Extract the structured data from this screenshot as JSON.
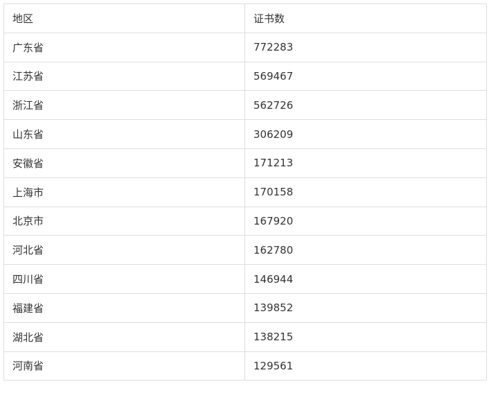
{
  "table": {
    "headers": [
      "地区",
      "证书数"
    ],
    "rows": [
      [
        "广东省",
        "772283"
      ],
      [
        "江苏省",
        "569467"
      ],
      [
        "浙江省",
        "562726"
      ],
      [
        "山东省",
        "306209"
      ],
      [
        "安徽省",
        "171213"
      ],
      [
        "上海市",
        "170158"
      ],
      [
        "北京市",
        "167920"
      ],
      [
        "河北省",
        "162780"
      ],
      [
        "四川省",
        "146944"
      ],
      [
        "福建省",
        "139852"
      ],
      [
        "湖北省",
        "138215"
      ],
      [
        "河南省",
        "129561"
      ]
    ]
  }
}
